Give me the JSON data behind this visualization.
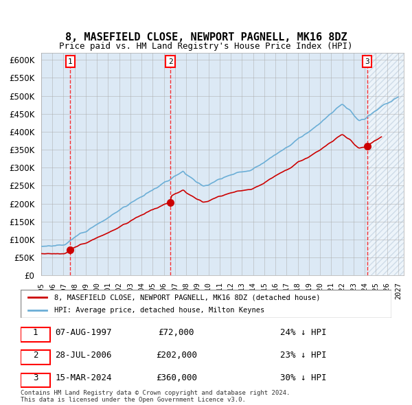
{
  "title": "8, MASEFIELD CLOSE, NEWPORT PAGNELL, MK16 8DZ",
  "subtitle": "Price paid vs. HM Land Registry's House Price Index (HPI)",
  "ylim": [
    0,
    620000
  ],
  "yticks": [
    0,
    50000,
    100000,
    150000,
    200000,
    250000,
    300000,
    350000,
    400000,
    450000,
    500000,
    550000,
    600000
  ],
  "xlim_start": 1995.0,
  "xlim_end": 2027.5,
  "xlabel": "",
  "sale1_date": 1997.6,
  "sale1_price": 72000,
  "sale2_date": 2006.58,
  "sale2_price": 202000,
  "sale3_date": 2024.21,
  "sale3_price": 360000,
  "hpi_color": "#6baed6",
  "price_color": "#cc0000",
  "bg_color": "#dce9f5",
  "hatch_color": "#b0c4d8",
  "grid_color": "#aaaaaa",
  "legend_label_red": "8, MASEFIELD CLOSE, NEWPORT PAGNELL, MK16 8DZ (detached house)",
  "legend_label_blue": "HPI: Average price, detached house, Milton Keynes",
  "table_rows": [
    [
      "1",
      "07-AUG-1997",
      "£72,000",
      "24% ↓ HPI"
    ],
    [
      "2",
      "28-JUL-2006",
      "£202,000",
      "23% ↓ HPI"
    ],
    [
      "3",
      "15-MAR-2024",
      "£360,000",
      "30% ↓ HPI"
    ]
  ],
  "footer": "Contains HM Land Registry data © Crown copyright and database right 2024.\nThis data is licensed under the Open Government Licence v3.0."
}
